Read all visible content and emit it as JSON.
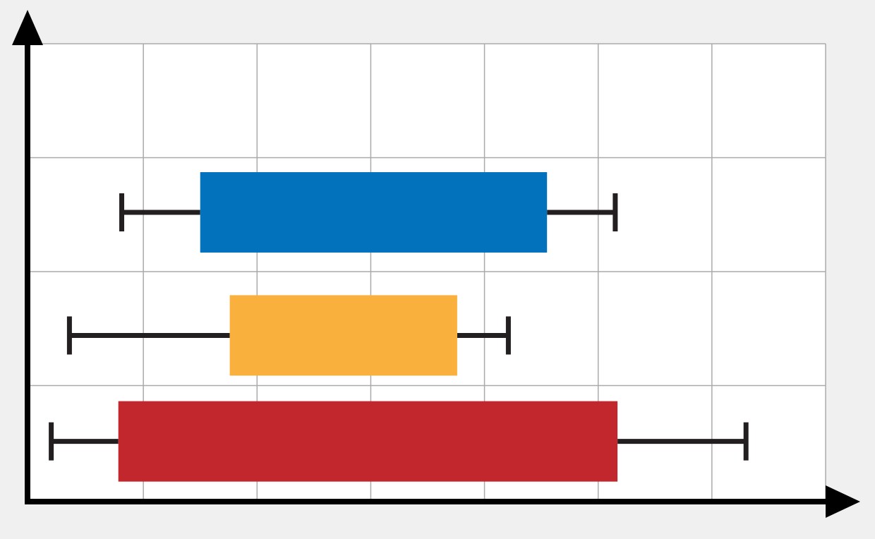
{
  "chart_data": {
    "type": "boxplot",
    "orientation": "horizontal",
    "title": "",
    "xlabel": "",
    "ylabel": "",
    "xlim": [
      0,
      7
    ],
    "ylim": [
      0,
      4
    ],
    "grid": true,
    "axis_arrows": true,
    "tick_labels": false,
    "series": [
      {
        "color": "#0272bc",
        "y_center": 2.52,
        "whisker_low": 0.81,
        "q1": 1.5,
        "q3": 4.55,
        "whisker_high": 5.15
      },
      {
        "color": "#fab03c",
        "y_center": 1.44,
        "whisker_low": 0.35,
        "q1": 1.76,
        "q3": 3.76,
        "whisker_high": 4.21
      },
      {
        "color": "#c1272d",
        "y_center": 0.51,
        "whisker_low": 0.19,
        "q1": 0.78,
        "q3": 5.17,
        "whisker_high": 6.3
      }
    ]
  }
}
